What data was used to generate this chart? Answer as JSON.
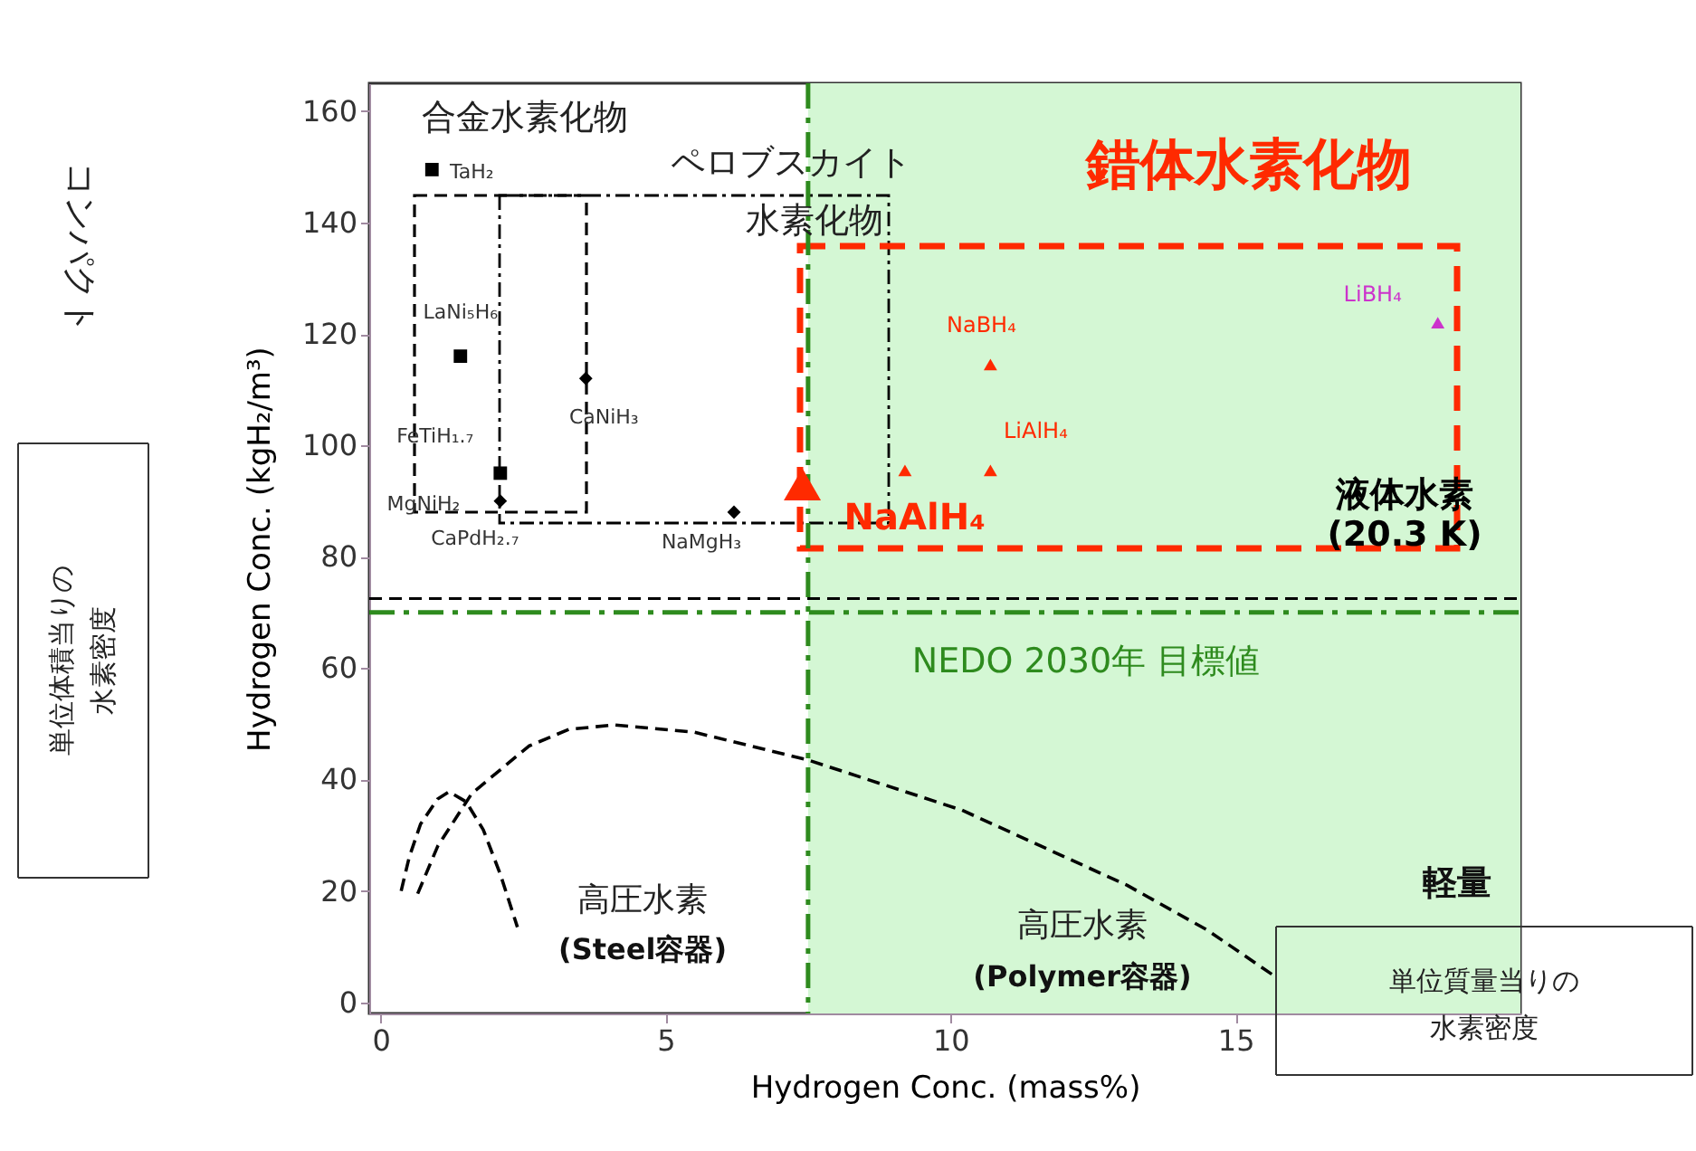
{
  "chart_data": {
    "type": "scatter",
    "xlabel": "Hydrogen Conc. (mass%)",
    "ylabel": "Hydrogen Conc. (kgH₂/m³)",
    "xlim": [
      -0.2,
      20
    ],
    "xticks": [
      0,
      5,
      10,
      15
    ],
    "ylim": [
      -2,
      165
    ],
    "yticks": [
      0,
      20,
      40,
      60,
      80,
      100,
      120,
      140,
      160
    ],
    "grid": false,
    "series": [
      {
        "name": "TaH₂",
        "marker": "square",
        "color": "#000000",
        "x": [
          0.9
        ],
        "values": [
          149.5
        ]
      },
      {
        "name": "LaNi₅H₆",
        "marker": "square",
        "color": "#000000",
        "x": [
          1.4
        ],
        "values": [
          116
        ]
      },
      {
        "name": "FeTiH₁.₇",
        "marker": "square",
        "color": "#000000",
        "x": [
          2.1
        ],
        "values": [
          95
        ]
      },
      {
        "name": "CaPdH₂.₇",
        "marker": "diamond",
        "color": "#000000",
        "x": [
          2.1
        ],
        "values": [
          90
        ]
      },
      {
        "name": "CaNiH₃",
        "marker": "diamond",
        "color": "#000000",
        "x": [
          3.6
        ],
        "values": [
          112
        ]
      },
      {
        "name": "NaMgH₃",
        "marker": "diamond",
        "color": "#000000",
        "x": [
          6.2
        ],
        "values": [
          88
        ]
      },
      {
        "name": "NaAlH₄",
        "marker": "triangle",
        "color": "#ff2a00",
        "x": [
          7.4
        ],
        "values": [
          93
        ]
      },
      {
        "marker": "triangle",
        "color": "#ff2a00",
        "x": [
          9.2
        ],
        "values": [
          95.5
        ]
      },
      {
        "name": "NaBH₄",
        "marker": "triangle",
        "color": "#ff2a00",
        "x": [
          10.7
        ],
        "values": [
          114.5
        ]
      },
      {
        "name": "LiAlH₄",
        "marker": "triangle",
        "color": "#ff2a00",
        "x": [
          10.7
        ],
        "values": [
          95.5
        ]
      },
      {
        "name": "LiBH₄",
        "marker": "triangle",
        "color": "#cc33cc",
        "x": [
          18.55
        ],
        "values": [
          122
        ]
      },
      {
        "type": "line",
        "line_style": "dashed",
        "color": "#000000",
        "x": [
          0.36,
          0.5,
          0.7,
          1.0,
          1.2,
          1.5,
          1.8,
          2.1,
          2.4
        ],
        "values": [
          20,
          26,
          32,
          36.5,
          37.8,
          36,
          31,
          23,
          13.5
        ]
      },
      {
        "type": "line",
        "line_style": "dashed",
        "color": "#000000",
        "x": [
          0.65,
          1.0,
          1.6,
          2.6,
          3.3,
          4.1,
          5.5,
          7.5,
          10.2,
          13.1,
          14.5,
          15.7
        ],
        "values": [
          19.5,
          28,
          37.5,
          46,
          49,
          49.8,
          48.5,
          43.5,
          34.5,
          21,
          13,
          4.6
        ]
      }
    ],
    "bands": [
      {
        "axis": "x",
        "from": 7.5,
        "to": 20,
        "color": "#d4f7d4"
      }
    ],
    "ref_lines": [
      {
        "axis": "y",
        "value": 72.5,
        "label": "液体水素\n(20.3 K)",
        "color": "#000000",
        "line_style": "dashed"
      },
      {
        "axis": "y",
        "value": 70,
        "label": "NEDO 2030年 目標値",
        "color": "#2e8b1e",
        "line_style": "dashed"
      },
      {
        "axis": "x",
        "value": 7.5,
        "color": "#2e8b1e",
        "line_style": "dashed"
      }
    ],
    "annotations": [
      "MgNiH₂",
      "合金水素化物",
      "ペロブスカイト",
      "水素化物",
      "錯体水素化物",
      "高圧水素",
      "(Steel容器)",
      "高圧水素",
      "(Polymer容器)",
      "単位体積当りの",
      "水素密度",
      "コンパクト",
      "軽量",
      "単位質量当りの",
      "水素密度"
    ]
  }
}
